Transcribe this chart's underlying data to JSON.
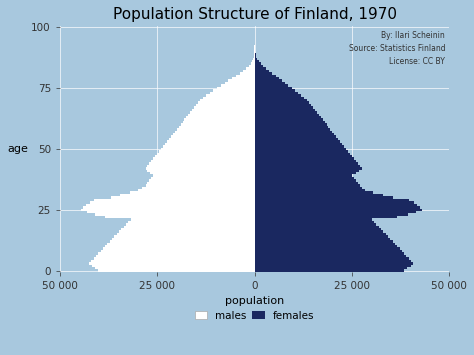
{
  "title": "Population Structure of Finland, 1970",
  "xlabel": "population",
  "ylabel": "age",
  "annotation": "By: Ilari Scheinin\nSource: Statistics Finland\nLicense: CC BY",
  "background_color": "#a8c8de",
  "male_color": "#ffffff",
  "female_color": "#1a2860",
  "xlim": [
    -50000,
    50000
  ],
  "ylim": [
    -0.5,
    100.5
  ],
  "xticks": [
    -50000,
    -25000,
    0,
    25000,
    50000
  ],
  "xticklabels": [
    "50 000",
    "25 000",
    "0",
    "25 000",
    "50 000"
  ],
  "yticks": [
    0,
    25,
    50,
    75,
    100
  ],
  "title_fontsize": 11,
  "label_fontsize": 8,
  "tick_fontsize": 7.5,
  "males": [
    40200,
    41000,
    41800,
    42500,
    42000,
    41300,
    40700,
    40100,
    39500,
    39000,
    38400,
    37800,
    37200,
    36600,
    36000,
    35400,
    34800,
    34200,
    33600,
    33000,
    32400,
    31800,
    38500,
    41000,
    43000,
    44500,
    44000,
    43200,
    42300,
    41200,
    37000,
    34500,
    32000,
    30000,
    29000,
    28000,
    27500,
    27000,
    26500,
    26000,
    26800,
    27500,
    28000,
    27500,
    27000,
    26500,
    26000,
    25500,
    25000,
    24500,
    24000,
    23500,
    23000,
    22500,
    22000,
    21500,
    21000,
    20500,
    20000,
    19500,
    19000,
    18500,
    18000,
    17500,
    17000,
    16500,
    16000,
    15500,
    15000,
    14500,
    14000,
    13200,
    12400,
    11500,
    10600,
    9700,
    8700,
    7700,
    6700,
    5700,
    4700,
    3700,
    2900,
    2100,
    1500,
    1000,
    650,
    400,
    230,
    120,
    60,
    30,
    12,
    5,
    2,
    1,
    0,
    0,
    0,
    0,
    0
  ],
  "females": [
    38500,
    39300,
    40100,
    40800,
    40300,
    39600,
    39000,
    38400,
    37800,
    37300,
    36700,
    36100,
    35500,
    34900,
    34300,
    33700,
    33100,
    32500,
    31900,
    31300,
    30700,
    30100,
    36500,
    39500,
    41500,
    43000,
    42500,
    41800,
    40900,
    39800,
    35500,
    33000,
    30500,
    28500,
    27500,
    27000,
    26500,
    26000,
    25500,
    25000,
    26000,
    26800,
    27500,
    27000,
    26500,
    26000,
    25500,
    25000,
    24500,
    24000,
    23500,
    23000,
    22500,
    22000,
    21500,
    21000,
    20500,
    20000,
    19500,
    19000,
    18500,
    18000,
    17500,
    17000,
    16500,
    16000,
    15500,
    15000,
    14500,
    14000,
    13500,
    12800,
    12000,
    11200,
    10400,
    9600,
    8700,
    7900,
    7000,
    6200,
    5400,
    4500,
    3700,
    2900,
    2200,
    1600,
    1100,
    730,
    470,
    280,
    160,
    85,
    40,
    18,
    8,
    3,
    1,
    0,
    0,
    0,
    0
  ]
}
